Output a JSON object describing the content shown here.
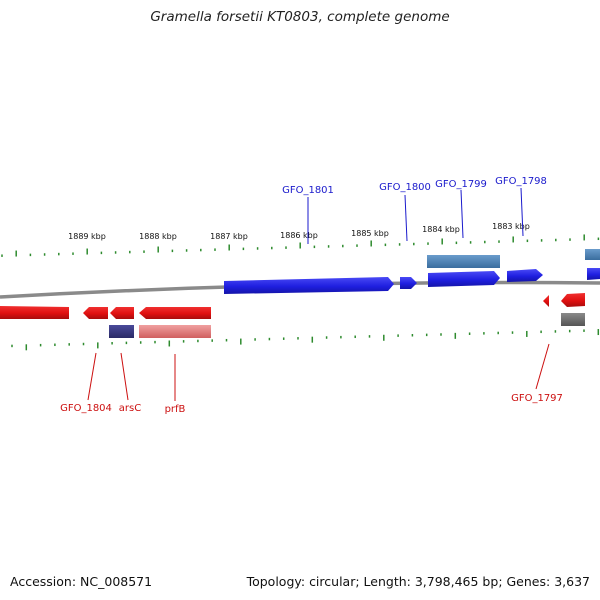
{
  "title": "Gramella forsetii KT0803, complete genome",
  "footer": {
    "accession_label": "Accession:",
    "accession": "NC_008571",
    "topology_label": "Topology:",
    "topology": "circular",
    "length_label": "Length:",
    "length": "3,798,465 bp",
    "genes_label": "Genes:",
    "genes": "3,637"
  },
  "colors": {
    "forward_gene": "#1f1fe0",
    "reverse_gene": "#e01010",
    "forward_label": "#1a1acc",
    "reverse_label": "#cc1010",
    "tick": "#2e8b2e",
    "backbone": "#8a8a8a"
  },
  "ruler_labels": [
    "1889 kbp",
    "1888 kbp",
    "1887 kbp",
    "1886 kbp",
    "1885 kbp",
    "1884 kbp",
    "1883 kbp"
  ],
  "forward_labels": [
    "GFO_1801",
    "GFO_1800",
    "GFO_1799",
    "GFO_1798"
  ],
  "reverse_labels": [
    "GFO_1804",
    "arsC",
    "prfB",
    "GFO_1797"
  ]
}
